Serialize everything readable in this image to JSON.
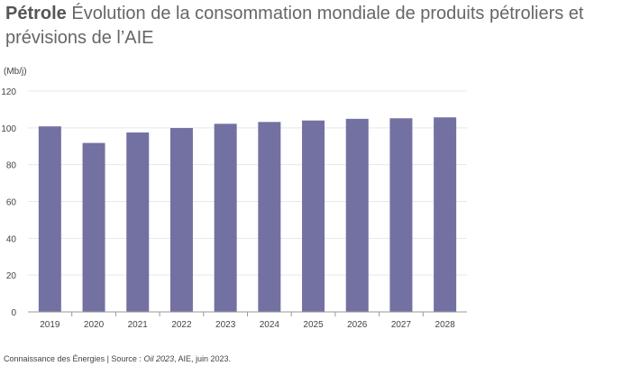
{
  "title": {
    "bold": "Pétrole",
    "rest": "Évolution de la consommation mondiale de produits pétroliers et prévisions de l’AIE"
  },
  "unit_label": "(Mb/j)",
  "source": {
    "prefix": "Connaissance des Énergies | Source : ",
    "italic": "Oil 2023",
    "suffix": ", AIE, juin 2023."
  },
  "colors": {
    "bar": "#7370a2",
    "grid": "#e8e8e8",
    "axis": "#9a9a9a",
    "text": "#444444"
  },
  "chart_data": {
    "type": "bar",
    "title": "Évolution de la consommation mondiale de produits pétroliers et prévisions de l’AIE",
    "xlabel": "",
    "ylabel": "(Mb/j)",
    "categories": [
      "2019",
      "2020",
      "2021",
      "2022",
      "2023",
      "2024",
      "2025",
      "2026",
      "2027",
      "2028"
    ],
    "values": [
      100.8,
      91.8,
      97.5,
      99.9,
      102.2,
      103.2,
      104.0,
      104.9,
      105.2,
      105.7
    ],
    "ylim": [
      0,
      120
    ],
    "yticks": [
      0,
      20,
      40,
      60,
      80,
      100,
      120
    ],
    "grid": true
  }
}
